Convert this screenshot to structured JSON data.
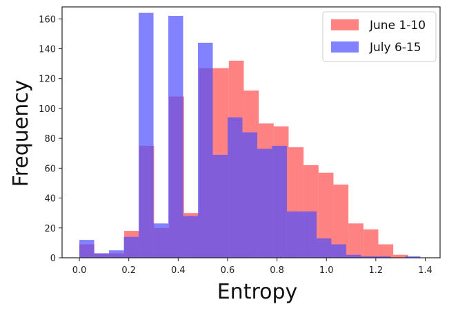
{
  "chart_data": {
    "type": "histogram",
    "title": "",
    "xlabel": "Entropy",
    "ylabel": "Frequency",
    "xlim": [
      -0.07,
      1.46
    ],
    "ylim": [
      0,
      168
    ],
    "xticks": [
      0.0,
      0.2,
      0.4,
      0.6,
      0.8,
      1.0,
      1.2,
      1.4
    ],
    "xtick_labels": [
      "0.0",
      "0.2",
      "0.4",
      "0.6",
      "0.8",
      "1.0",
      "1.2",
      "1.4"
    ],
    "yticks": [
      0,
      20,
      40,
      60,
      80,
      100,
      120,
      140,
      160
    ],
    "ytick_labels": [
      "0",
      "20",
      "40",
      "60",
      "80",
      "100",
      "120",
      "140",
      "160"
    ],
    "legend_position": "top-right",
    "series": [
      {
        "name": "June 1-10",
        "color": "#ff4d4d",
        "opacity": 0.7,
        "bin_edges": [
          0.0,
          0.0605,
          0.121,
          0.1815,
          0.242,
          0.3025,
          0.363,
          0.4235,
          0.484,
          0.5445,
          0.605,
          0.6655,
          0.726,
          0.7865,
          0.847,
          0.9075,
          0.968,
          1.0285,
          1.089,
          1.1495,
          1.21,
          1.2705,
          1.331,
          1.3915
        ],
        "counts": [
          9,
          3,
          3,
          18,
          75,
          20,
          108,
          30,
          127,
          127,
          132,
          112,
          90,
          88,
          74,
          62,
          57,
          49,
          23,
          19,
          9,
          2,
          0
        ]
      },
      {
        "name": "July 6-15",
        "color": "#4d4dff",
        "opacity": 0.7,
        "bin_edges": [
          0.0,
          0.06,
          0.12,
          0.18,
          0.24,
          0.3,
          0.36,
          0.42,
          0.48,
          0.54,
          0.6,
          0.66,
          0.72,
          0.78,
          0.84,
          0.9,
          0.96,
          1.02,
          1.08,
          1.14,
          1.2,
          1.26,
          1.32,
          1.38,
          1.44
        ],
        "counts": [
          12,
          3,
          5,
          14,
          164,
          23,
          162,
          28,
          144,
          69,
          94,
          84,
          73,
          75,
          31,
          31,
          13,
          9,
          2,
          1,
          1,
          0,
          1,
          0
        ]
      }
    ]
  }
}
